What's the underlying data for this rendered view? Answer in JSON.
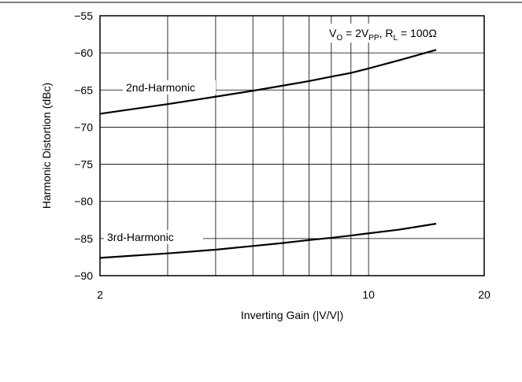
{
  "chart_data": {
    "type": "line",
    "title": "",
    "xlabel": "Inverting Gain (|V/V|)",
    "ylabel": "Harmonic Distortion (dBc)",
    "xscale": "log",
    "xlim": [
      2,
      20
    ],
    "ylim": [
      -90,
      -55
    ],
    "x_ticks": [
      2,
      10,
      20
    ],
    "x_tick_labels": [
      "2",
      "10",
      "20"
    ],
    "y_ticks": [
      -55,
      -60,
      -65,
      -70,
      -75,
      -80,
      -85,
      -90
    ],
    "y_tick_labels": [
      "−55",
      "−60",
      "−65",
      "−70",
      "−75",
      "−80",
      "−85",
      "−90"
    ],
    "minor_x_gridlines": [
      3,
      4,
      5,
      6,
      7,
      8,
      9
    ],
    "grid": true,
    "annotation": {
      "v_main": "V",
      "v_sub": "O",
      "eq1": " = 2V",
      "pp_sub": "PP",
      "r_text": ", R",
      "l_sub": "L",
      "eq2": " = 100Ω"
    },
    "series": [
      {
        "name": "2nd-Harmonic",
        "x": [
          2,
          3,
          4,
          5,
          6,
          7,
          8,
          9,
          10,
          12,
          15
        ],
        "y": [
          -68.2,
          -66.9,
          -65.9,
          -65.1,
          -64.4,
          -63.8,
          -63.2,
          -62.7,
          -62.1,
          -61.0,
          -59.6
        ]
      },
      {
        "name": "3rd-Harmonic",
        "x": [
          2,
          3,
          4,
          5,
          6,
          7,
          8,
          9,
          10,
          12,
          15
        ],
        "y": [
          -87.6,
          -87.0,
          -86.5,
          -86.0,
          -85.6,
          -85.2,
          -84.9,
          -84.6,
          -84.3,
          -83.8,
          -83.0
        ]
      }
    ]
  }
}
